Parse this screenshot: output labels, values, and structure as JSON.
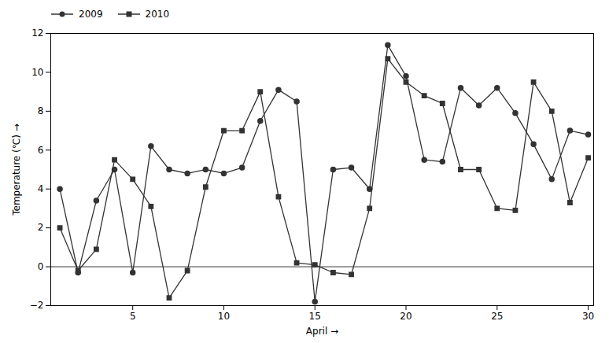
{
  "chart_data": {
    "type": "line",
    "x": [
      1,
      2,
      3,
      4,
      5,
      6,
      7,
      8,
      9,
      10,
      11,
      12,
      13,
      14,
      15,
      16,
      17,
      18,
      19,
      20,
      21,
      22,
      23,
      24,
      25,
      26,
      27,
      28,
      29,
      30
    ],
    "series": [
      {
        "name": "2009",
        "color": "#333333",
        "marker": "circle",
        "line_style": "solid",
        "values": [
          4.0,
          -0.3,
          3.4,
          5.0,
          -0.3,
          6.2,
          5.0,
          4.8,
          5.0,
          4.8,
          5.1,
          7.5,
          9.1,
          8.5,
          -1.8,
          5.0,
          5.1,
          4.0,
          11.4,
          9.8,
          5.5,
          5.4,
          9.2,
          8.3,
          9.2,
          7.9,
          6.3,
          4.5,
          7.0,
          6.8
        ]
      },
      {
        "name": "2010",
        "color": "#333333",
        "marker": "square",
        "line_style": "solid",
        "values": [
          2.0,
          -0.2,
          0.9,
          5.5,
          4.5,
          3.1,
          -1.6,
          -0.2,
          4.1,
          7.0,
          7.0,
          9.0,
          3.6,
          0.2,
          0.1,
          -0.3,
          -0.4,
          3.0,
          10.7,
          9.5,
          8.8,
          8.4,
          5.0,
          5.0,
          3.0,
          2.9,
          9.5,
          8.0,
          3.3,
          5.6
        ]
      }
    ],
    "x_label": "April",
    "y_label": "Temperature (℃)",
    "xlim": [
      0.5,
      30.3
    ],
    "xticks": [
      5,
      10,
      15,
      20,
      25,
      30
    ],
    "ylim": [
      -2,
      12
    ],
    "yticks": [
      -2,
      0,
      2,
      4,
      6,
      8,
      10,
      12
    ],
    "grid": false,
    "legend": "upper left"
  }
}
